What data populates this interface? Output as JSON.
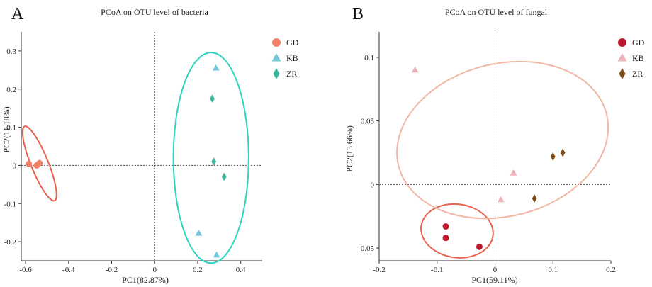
{
  "chart_data": [
    {
      "panel": "A",
      "type": "scatter",
      "title": "PCoA on OTU level of bacteria",
      "xlabel": "PC1(82.87%)",
      "ylabel": "PC2(11.18%)",
      "xlim": [
        -0.62,
        0.5
      ],
      "ylim": [
        -0.25,
        0.35
      ],
      "xticks": [
        -0.6,
        -0.4,
        -0.2,
        0,
        0.2,
        0.4
      ],
      "xtick_labels": [
        "-0.6",
        "-0.4",
        "-0.2",
        "0",
        "0.2",
        "0.4"
      ],
      "yticks": [
        -0.2,
        -0.1,
        0,
        0.1,
        0.2,
        0.3
      ],
      "ytick_labels": [
        "-0.2",
        "-0.1",
        "0",
        "0.1",
        "0.2",
        "0.3"
      ],
      "reference_lines": {
        "x": 0,
        "y": 0
      },
      "legend_position": "top-right",
      "series": [
        {
          "name": "GD",
          "marker": "circle",
          "color": "#f0826a",
          "points": [
            [
              -0.585,
              0.004
            ],
            [
              -0.548,
              0.0
            ],
            [
              -0.535,
              0.006
            ]
          ]
        },
        {
          "name": "KB",
          "marker": "triangle",
          "color": "#74c7d9",
          "points": [
            [
              0.285,
              0.255
            ],
            [
              0.205,
              -0.178
            ],
            [
              0.288,
              -0.235
            ]
          ]
        },
        {
          "name": "ZR",
          "marker": "diamond",
          "color": "#3bb59b",
          "points": [
            [
              0.268,
              0.175
            ],
            [
              0.275,
              0.01
            ],
            [
              0.323,
              -0.03
            ]
          ]
        }
      ],
      "ellipses": [
        {
          "group": "GD",
          "color": "#e8624e",
          "center": [
            -0.535,
            0.005
          ],
          "rx_data": 0.04,
          "ry_data": 0.105,
          "angle_deg": 22
        },
        {
          "group": "KB/ZR",
          "color": "#2ed3c0",
          "center": [
            0.262,
            0.02
          ],
          "rx_data": 0.175,
          "ry_data": 0.276,
          "angle_deg": 0
        }
      ]
    },
    {
      "panel": "B",
      "type": "scatter",
      "title": "PCoA on OTU level of fungal",
      "xlabel": "PC1(59.11%)",
      "ylabel": "PC2(13.66%)",
      "xlim": [
        -0.2,
        0.2
      ],
      "ylim": [
        -0.06,
        0.12
      ],
      "xticks": [
        -0.2,
        -0.1,
        0,
        0.1,
        0.2
      ],
      "xtick_labels": [
        "-0.2",
        "-0.1",
        "0",
        "0.1",
        "0.2"
      ],
      "yticks": [
        -0.05,
        0,
        0.05,
        0.1
      ],
      "ytick_labels": [
        "-0.05",
        "0",
        "0.05",
        "0.1"
      ],
      "reference_lines": {
        "x": 0,
        "y": 0
      },
      "legend_position": "top-right",
      "series": [
        {
          "name": "GD",
          "marker": "circle",
          "color": "#c0192f",
          "points": [
            [
              -0.085,
              -0.033
            ],
            [
              -0.085,
              -0.042
            ],
            [
              -0.027,
              -0.049
            ]
          ]
        },
        {
          "name": "KB",
          "marker": "triangle",
          "color": "#eeb3b8",
          "points": [
            [
              -0.138,
              0.09
            ],
            [
              0.032,
              0.009
            ],
            [
              0.01,
              -0.012
            ]
          ]
        },
        {
          "name": "ZR",
          "marker": "diamond",
          "color": "#7a4d18",
          "points": [
            [
              0.1,
              0.022
            ],
            [
              0.117,
              0.025
            ],
            [
              0.068,
              -0.011
            ]
          ]
        }
      ],
      "ellipses": [
        {
          "group": "GD",
          "color": "#e8624e",
          "center": [
            -0.0655,
            -0.0365
          ],
          "rx_data": 0.0625,
          "ry_data": 0.021,
          "angle_deg": -8
        },
        {
          "group": "KB/ZR",
          "color": "#f0b8a4",
          "center": [
            0.013,
            0.035
          ],
          "rx_data": 0.185,
          "ry_data": 0.06,
          "angle_deg": 14
        }
      ]
    }
  ]
}
